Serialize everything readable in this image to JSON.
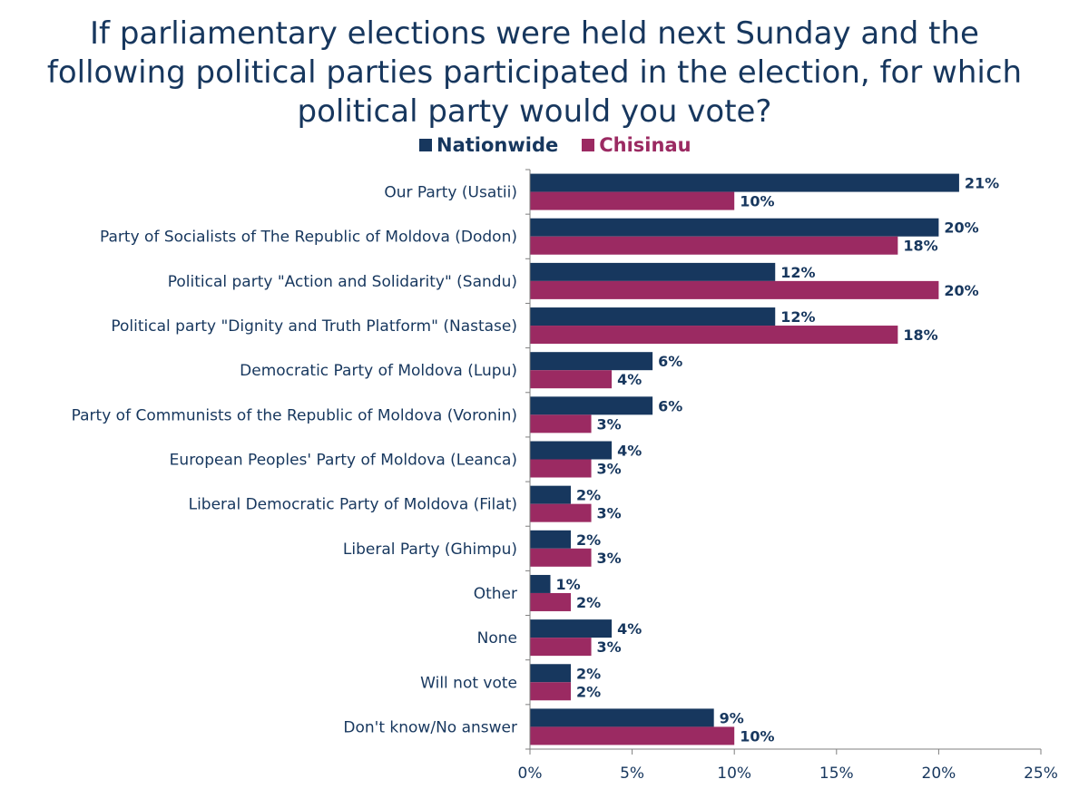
{
  "title": "If parliamentary elections were held next Sunday and the following political parties participated in the election, for which political party would you vote?",
  "chart_data": {
    "type": "bar",
    "orientation": "horizontal",
    "title": "If parliamentary elections were held next Sunday and the following political parties participated in the election, for which political party would you vote?",
    "categories": [
      "Our Party (Usatii)",
      "Party of Socialists of The Republic of Moldova (Dodon)",
      "Political party \"Action and Solidarity\" (Sandu)",
      "Political party \"Dignity and Truth Platform\" (Nastase)",
      "Democratic Party of Moldova (Lupu)",
      "Party of Communists  of the Republic of Moldova (Voronin)",
      "European Peoples' Party of Moldova (Leanca)",
      "Liberal Democratic Party of Moldova (Filat)",
      "Liberal Party (Ghimpu)",
      "Other",
      "None",
      "Will not vote",
      "Don't know/No answer"
    ],
    "series": [
      {
        "name": "Nationwide",
        "color": "#17375e",
        "values": [
          21,
          20,
          12,
          12,
          6,
          6,
          4,
          2,
          2,
          1,
          4,
          2,
          9
        ],
        "labels": [
          "21%",
          "20%",
          "12%",
          "12%",
          "6%",
          "6%",
          "4%",
          "2%",
          "2%",
          "1%",
          "4%",
          "2%",
          "9%"
        ]
      },
      {
        "name": "Chisinau",
        "color": "#9b2a62",
        "values": [
          10,
          18,
          20,
          18,
          4,
          3,
          3,
          3,
          3,
          2,
          3,
          2,
          10
        ],
        "labels": [
          "10%",
          "18%",
          "20%",
          "18%",
          "4%",
          "3%",
          "3%",
          "3%",
          "3%",
          "2%",
          "3%",
          "2%",
          "10%"
        ]
      }
    ],
    "xlim": [
      0,
      25
    ],
    "xticks": [
      "0%",
      "5%",
      "10%",
      "15%",
      "20%",
      "25%"
    ],
    "xtick_values": [
      0,
      5,
      10,
      15,
      20,
      25
    ],
    "legend": "top-center",
    "grid": false
  }
}
